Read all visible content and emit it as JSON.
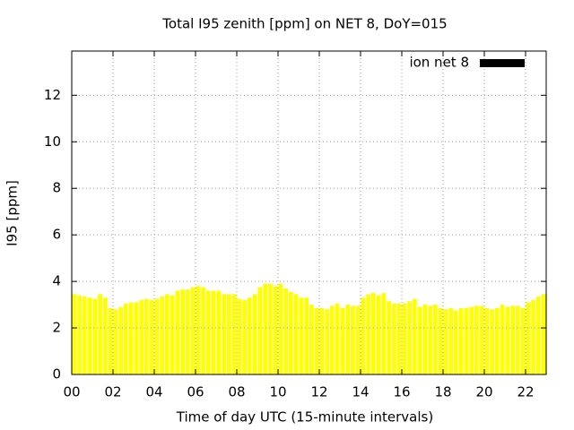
{
  "chart_data": {
    "type": "bar",
    "title": "Total I95 zenith [ppm] on NET 8, DoY=015",
    "xlabel": "Time of day UTC (15-minute intervals)",
    "ylabel": "I95 [ppm]",
    "x": [
      0.125,
      0.375,
      0.625,
      0.875,
      1.125,
      1.375,
      1.625,
      1.875,
      2.125,
      2.375,
      2.625,
      2.875,
      3.125,
      3.375,
      3.625,
      3.875,
      4.125,
      4.375,
      4.625,
      4.875,
      5.125,
      5.375,
      5.625,
      5.875,
      6.125,
      6.375,
      6.625,
      6.875,
      7.125,
      7.375,
      7.625,
      7.875,
      8.125,
      8.375,
      8.625,
      8.875,
      9.125,
      9.375,
      9.625,
      9.875,
      10.125,
      10.375,
      10.625,
      10.875,
      11.125,
      11.375,
      11.625,
      11.875,
      12.125,
      12.375,
      12.625,
      12.875,
      13.125,
      13.375,
      13.625,
      13.875,
      14.125,
      14.375,
      14.625,
      14.875,
      15.125,
      15.375,
      15.625,
      15.875,
      16.125,
      16.375,
      16.625,
      16.875,
      17.125,
      17.375,
      17.625,
      17.875,
      18.125,
      18.375,
      18.625,
      18.875,
      19.125,
      19.375,
      19.625,
      19.875,
      20.125,
      20.375,
      20.625,
      20.875,
      21.125,
      21.375,
      21.625,
      21.875,
      22.125,
      22.375,
      22.625,
      22.875
    ],
    "series": [
      {
        "name": "ion net 8",
        "color": "#ffff00",
        "values": [
          3.45,
          3.4,
          3.35,
          3.3,
          3.25,
          3.45,
          3.3,
          2.85,
          2.8,
          2.9,
          3.05,
          3.1,
          3.1,
          3.2,
          3.25,
          3.2,
          3.25,
          3.35,
          3.45,
          3.4,
          3.6,
          3.65,
          3.65,
          3.75,
          3.8,
          3.75,
          3.6,
          3.6,
          3.6,
          3.45,
          3.45,
          3.45,
          3.25,
          3.2,
          3.3,
          3.45,
          3.75,
          3.9,
          3.9,
          3.8,
          3.9,
          3.7,
          3.55,
          3.45,
          3.3,
          3.3,
          3.0,
          2.85,
          2.85,
          2.8,
          2.95,
          3.05,
          2.85,
          3.0,
          2.95,
          2.95,
          3.3,
          3.45,
          3.5,
          3.4,
          3.5,
          3.15,
          3.05,
          3.05,
          3.05,
          3.15,
          3.25,
          2.9,
          3.0,
          2.95,
          3.0,
          2.85,
          2.8,
          2.85,
          2.75,
          2.85,
          2.85,
          2.9,
          2.95,
          2.95,
          2.85,
          2.8,
          2.85,
          3.0,
          2.9,
          2.95,
          2.95,
          2.85,
          3.1,
          3.2,
          3.35,
          3.45
        ]
      }
    ],
    "xlim": [
      0,
      23
    ],
    "xticks": [
      {
        "value": 0,
        "label": "00"
      },
      {
        "value": 2,
        "label": "02"
      },
      {
        "value": 4,
        "label": "04"
      },
      {
        "value": 6,
        "label": "06"
      },
      {
        "value": 8,
        "label": "08"
      },
      10,
      12,
      14,
      16,
      18,
      20,
      22
    ],
    "ylim": [
      0,
      13.9
    ],
    "yticks": [
      0,
      2,
      4,
      6,
      8,
      10,
      12
    ],
    "grid": true,
    "legend": "upper right"
  }
}
